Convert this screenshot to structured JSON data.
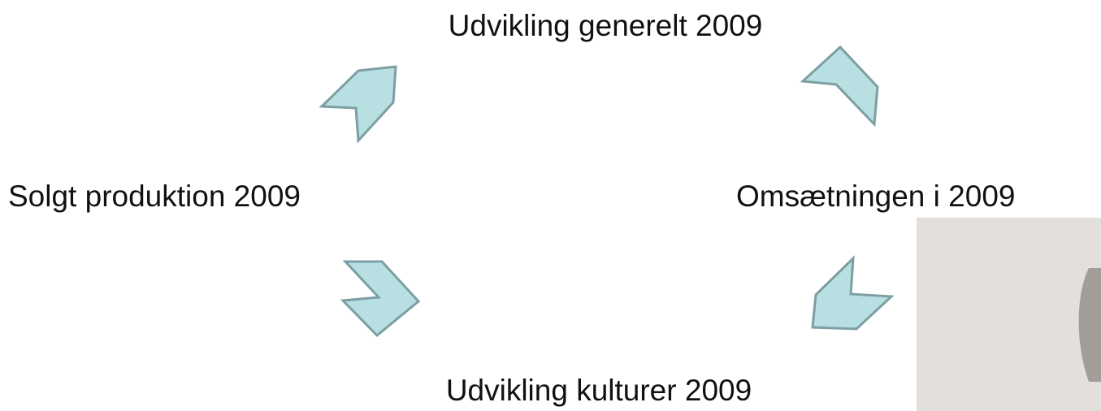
{
  "nodes": [
    {
      "label": "Udvikling generelt 2009"
    },
    {
      "label": "Omsætningen i 2009"
    },
    {
      "label": "Udvikling kulturer 2009"
    },
    {
      "label": "Solgt produktion 2009"
    }
  ]
}
